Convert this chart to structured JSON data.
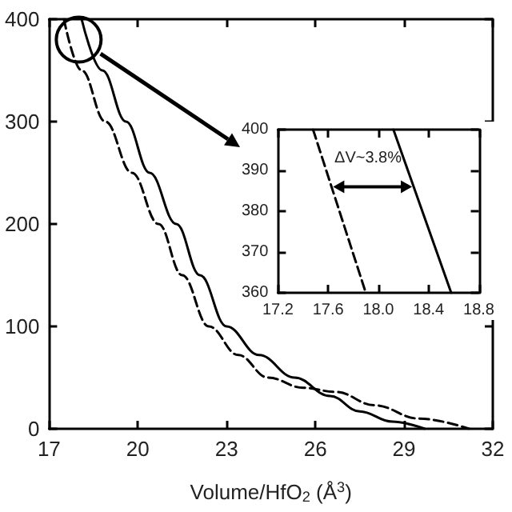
{
  "chart_data": [
    {
      "type": "line",
      "xlabel": "Volume/HfO$_{2}$ (Å$^{3}$)",
      "xlim": [
        17,
        32
      ],
      "xticks": [
        17,
        20,
        23,
        26,
        29,
        32
      ],
      "ylim": [
        0,
        400
      ],
      "yticks": [
        0,
        100,
        200,
        300,
        400
      ],
      "grid": false,
      "marker": "none",
      "series": [
        {
          "color": "#000000",
          "line_style": "solid",
          "x": [
            18.1,
            18.8,
            19.6,
            20.4,
            21.3,
            22.1,
            23.0,
            24.1,
            25.3,
            26.5,
            27.5,
            28.6,
            29.7
          ],
          "values": [
            400,
            350,
            300,
            250,
            200,
            150,
            100,
            72,
            50,
            32,
            17,
            7,
            0
          ]
        },
        {
          "color": "#000000",
          "line_style": "dashed",
          "x": [
            17.5,
            18.1,
            18.9,
            19.8,
            20.7,
            21.5,
            22.4,
            23.4,
            24.4,
            25.6,
            26.7,
            28.0,
            29.5,
            31.2
          ],
          "values": [
            400,
            350,
            300,
            250,
            200,
            150,
            100,
            72,
            50,
            40,
            36,
            23,
            10,
            0
          ]
        }
      ]
    },
    {
      "type": "line",
      "annotations": [
        "ΔV~3.8%"
      ],
      "xlim": [
        17.2,
        18.8
      ],
      "xticks": [
        17.2,
        17.6,
        {
          "value": 18,
          "label": "18.0"
        },
        18.4,
        18.8
      ],
      "ylim": [
        360,
        400
      ],
      "yticks": [
        360,
        370,
        380,
        390,
        400
      ],
      "grid": false,
      "marker": "none",
      "series": [
        {
          "color": "#000000",
          "line_style": "dashed",
          "x": [
            17.48,
            17.9
          ],
          "values": [
            400,
            360
          ]
        },
        {
          "color": "#000000",
          "line_style": "solid",
          "x": [
            18.12,
            18.58
          ],
          "values": [
            400,
            360
          ]
        }
      ]
    }
  ]
}
